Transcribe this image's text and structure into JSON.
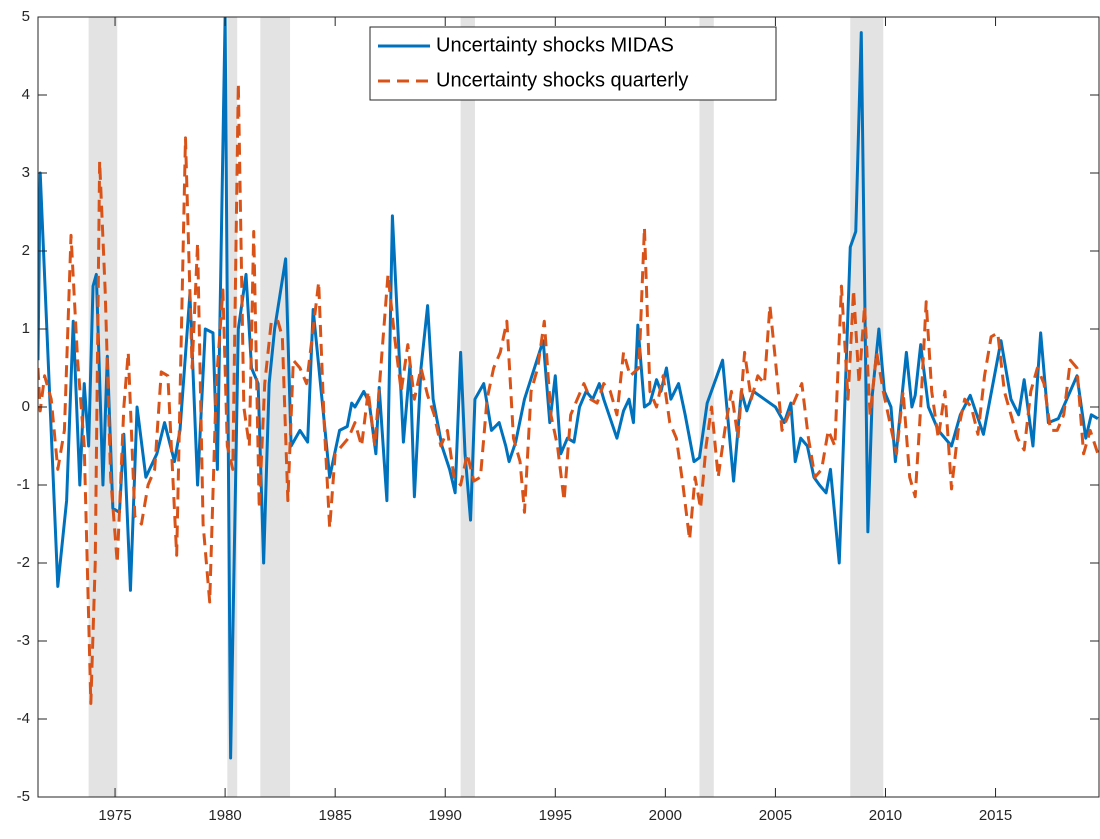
{
  "chart_data": {
    "type": "line",
    "xlim": [
      1971.5,
      2019.7
    ],
    "xticks": [
      1975,
      1980,
      1985,
      1990,
      1995,
      2000,
      2005,
      2010,
      2015
    ],
    "ylim": [
      -5,
      5
    ],
    "yticks": [
      -5,
      -4,
      -3,
      -2,
      -1,
      0,
      1,
      2,
      3,
      4,
      5
    ],
    "legend": "north",
    "recessions": [
      [
        1973.8,
        1975.1
      ],
      [
        1980.1,
        1980.55
      ],
      [
        1981.6,
        1982.95
      ],
      [
        1990.7,
        1991.35
      ],
      [
        2001.55,
        2002.2
      ],
      [
        2008.4,
        2009.9
      ]
    ],
    "recession_color": "#e3e3e3",
    "series": [
      {
        "name": "Uncertainty shocks MIDAS",
        "color": "#0072BD",
        "dash": "solid",
        "x": [
          1971.5,
          1971.6,
          1972.4,
          1972.8,
          1973.1,
          1973.4,
          1973.6,
          1973.8,
          1974.0,
          1974.15,
          1974.45,
          1974.65,
          1974.9,
          1975.2,
          1975.4,
          1975.7,
          1976.0,
          1976.4,
          1976.9,
          1977.25,
          1977.7,
          1977.95,
          1978.4,
          1978.75,
          1979.1,
          1979.45,
          1979.65,
          1980.0,
          1980.25,
          1980.6,
          1980.95,
          1981.2,
          1981.5,
          1981.75,
          1982.0,
          1982.25,
          1982.75,
          1983.0,
          1983.4,
          1983.75,
          1984.0,
          1984.75,
          1985.2,
          1985.55,
          1985.75,
          1985.9,
          1986.3,
          1986.55,
          1986.85,
          1987.0,
          1987.35,
          1987.6,
          1988.1,
          1988.4,
          1988.6,
          1988.9,
          1989.2,
          1989.45,
          1989.85,
          1990.2,
          1990.45,
          1990.7,
          1990.9,
          1991.15,
          1991.35,
          1991.75,
          1992.1,
          1992.45,
          1992.75,
          1992.9,
          1993.2,
          1993.6,
          1994.45,
          1994.75,
          1995.0,
          1995.25,
          1995.55,
          1995.85,
          1996.1,
          1996.4,
          1996.7,
          1997.0,
          1997.2,
          1997.8,
          1998.1,
          1998.35,
          1998.55,
          1998.75,
          1999.05,
          1999.3,
          1999.6,
          1999.8,
          2000.05,
          2000.25,
          2000.6,
          2000.9,
          2001.1,
          2001.3,
          2001.55,
          2001.9,
          2002.6,
          2003.1,
          2003.45,
          2003.7,
          2004.0,
          2004.5,
          2005.0,
          2005.4,
          2005.7,
          2005.9,
          2006.15,
          2006.45,
          2006.75,
          2007.0,
          2007.3,
          2007.5,
          2007.9,
          2008.4,
          2008.65,
          2008.9,
          2009.2,
          2009.4,
          2009.7,
          2009.95,
          2010.25,
          2010.45,
          2010.95,
          2011.2,
          2011.35,
          2011.6,
          2011.95,
          2012.4,
          2013.0,
          2013.4,
          2013.85,
          2014.45,
          2015.25,
          2015.7,
          2016.05,
          2016.3,
          2016.7,
          2017.05,
          2017.4,
          2017.85,
          2018.7,
          2019.1,
          2019.35,
          2019.65
        ],
        "values": [
          0.6,
          3.0,
          -2.3,
          -1.2,
          1.1,
          -1.0,
          0.3,
          -0.5,
          1.55,
          1.7,
          -1.0,
          0.65,
          -1.3,
          -1.35,
          -0.35,
          -2.35,
          0.0,
          -0.9,
          -0.6,
          -0.2,
          -0.7,
          -0.3,
          1.45,
          -1.0,
          1.0,
          0.95,
          -0.8,
          5.0,
          -4.5,
          1.0,
          1.7,
          0.5,
          0.3,
          -2.0,
          0.3,
          1.0,
          1.9,
          -0.5,
          -0.3,
          -0.45,
          1.25,
          -0.9,
          -0.3,
          -0.25,
          0.05,
          0.0,
          0.2,
          0.05,
          -0.6,
          0.25,
          -1.2,
          2.45,
          -0.45,
          0.55,
          -1.15,
          0.5,
          1.3,
          0.1,
          -0.5,
          -0.8,
          -1.1,
          0.7,
          -0.6,
          -1.45,
          0.1,
          0.3,
          -0.3,
          -0.2,
          -0.5,
          -0.7,
          -0.45,
          0.1,
          0.85,
          -0.2,
          0.4,
          -0.6,
          -0.4,
          -0.45,
          0.0,
          0.2,
          0.1,
          0.3,
          0.1,
          -0.4,
          -0.05,
          0.1,
          -0.2,
          1.05,
          0.0,
          0.05,
          0.35,
          0.2,
          0.5,
          0.1,
          0.3,
          -0.1,
          -0.4,
          -0.7,
          -0.65,
          0.05,
          0.6,
          -0.95,
          0.2,
          -0.05,
          0.2,
          0.1,
          0.0,
          -0.2,
          0.05,
          -0.7,
          -0.4,
          -0.5,
          -0.9,
          -1.0,
          -1.1,
          -0.8,
          -2.0,
          2.05,
          2.25,
          4.8,
          -1.6,
          0.15,
          1.0,
          0.2,
          0.0,
          -0.7,
          0.7,
          0.0,
          0.15,
          0.8,
          0.0,
          -0.3,
          -0.5,
          -0.1,
          0.15,
          -0.35,
          0.85,
          0.1,
          -0.1,
          0.35,
          -0.5,
          0.95,
          -0.2,
          -0.15,
          0.4,
          -0.4,
          -0.1,
          -0.15
        ]
      },
      {
        "name": "Uncertainty shocks quarterly",
        "color": "#D95319",
        "dash": "dashed",
        "x": [
          1971.5,
          1971.6,
          1971.8,
          1972.1,
          1972.4,
          1972.7,
          1973.0,
          1973.3,
          1973.6,
          1973.9,
          1974.1,
          1974.3,
          1974.55,
          1974.8,
          1975.1,
          1975.4,
          1975.6,
          1975.9,
          1976.2,
          1976.5,
          1976.8,
          1977.1,
          1977.4,
          1977.8,
          1978.2,
          1978.5,
          1978.75,
          1979.0,
          1979.3,
          1979.6,
          1979.9,
          1980.1,
          1980.35,
          1980.6,
          1980.85,
          1981.1,
          1981.3,
          1981.55,
          1981.8,
          1982.1,
          1982.4,
          1982.6,
          1982.85,
          1983.1,
          1983.4,
          1983.7,
          1984.0,
          1984.25,
          1984.5,
          1984.75,
          1985.0,
          1985.3,
          1985.6,
          1985.9,
          1986.2,
          1986.5,
          1986.8,
          1987.1,
          1987.4,
          1987.7,
          1988.0,
          1988.3,
          1988.6,
          1988.9,
          1989.2,
          1989.5,
          1989.8,
          1990.1,
          1990.4,
          1990.7,
          1991.0,
          1991.3,
          1991.6,
          1991.9,
          1992.2,
          1992.5,
          1992.8,
          1993.1,
          1993.4,
          1993.6,
          1993.9,
          1994.2,
          1994.5,
          1994.8,
          1995.1,
          1995.4,
          1995.7,
          1996.0,
          1996.3,
          1996.6,
          1996.9,
          1997.2,
          1997.5,
          1997.8,
          1998.1,
          1998.4,
          1998.8,
          1999.05,
          1999.3,
          1999.6,
          1999.9,
          2000.2,
          2000.5,
          2000.8,
          2001.1,
          2001.35,
          2001.6,
          2001.85,
          2002.1,
          2002.4,
          2002.7,
          2003.0,
          2003.3,
          2003.6,
          2003.9,
          2004.2,
          2004.5,
          2004.75,
          2005.0,
          2005.3,
          2005.6,
          2005.9,
          2006.2,
          2006.5,
          2006.8,
          2007.1,
          2007.4,
          2007.7,
          2008.0,
          2008.3,
          2008.55,
          2008.8,
          2009.05,
          2009.3,
          2009.6,
          2009.9,
          2010.2,
          2010.5,
          2010.8,
          2011.1,
          2011.35,
          2011.6,
          2011.85,
          2012.1,
          2012.4,
          2012.7,
          2013.0,
          2013.3,
          2013.6,
          2013.9,
          2014.2,
          2014.5,
          2014.8,
          2015.1,
          2015.4,
          2015.7,
          2016.0,
          2016.3,
          2016.6,
          2016.9,
          2017.2,
          2017.5,
          2017.8,
          2018.1,
          2018.4,
          2018.7,
          2019.0,
          2019.3,
          2019.65
        ],
        "values": [
          0.5,
          -0.05,
          0.4,
          0.1,
          -0.8,
          -0.3,
          2.2,
          0.6,
          -0.5,
          -3.8,
          -2.0,
          3.15,
          1.5,
          -0.9,
          -2.0,
          0.0,
          0.7,
          -1.4,
          -1.5,
          -1.0,
          -0.8,
          0.45,
          0.4,
          -1.9,
          3.45,
          0.5,
          2.1,
          -1.5,
          -2.5,
          0.3,
          1.5,
          -0.5,
          -0.8,
          4.15,
          0.0,
          -0.5,
          2.25,
          -1.3,
          0.3,
          1.1,
          1.1,
          0.9,
          -1.2,
          0.6,
          0.5,
          0.3,
          1.0,
          1.6,
          -0.2,
          -1.55,
          -0.6,
          -0.5,
          -0.4,
          -0.2,
          -0.5,
          0.2,
          -0.5,
          0.6,
          1.7,
          0.9,
          0.2,
          0.8,
          0.1,
          0.5,
          0.15,
          -0.1,
          -0.5,
          -0.3,
          -0.9,
          -1.0,
          -0.6,
          -0.95,
          -0.9,
          0.1,
          0.5,
          0.7,
          1.1,
          -0.4,
          -0.7,
          -1.35,
          0.2,
          0.5,
          1.1,
          -0.1,
          -0.5,
          -1.2,
          -0.1,
          0.1,
          0.3,
          0.1,
          0.05,
          0.3,
          0.2,
          -0.1,
          0.7,
          0.4,
          0.5,
          2.3,
          0.2,
          0.0,
          0.4,
          -0.2,
          -0.4,
          -1.0,
          -1.7,
          -0.9,
          -1.3,
          -0.5,
          0.0,
          -0.9,
          -0.3,
          0.2,
          -0.4,
          0.7,
          0.1,
          0.4,
          0.3,
          1.3,
          0.6,
          -0.3,
          -0.1,
          0.1,
          0.3,
          -0.4,
          -0.9,
          -0.8,
          -0.3,
          -0.5,
          1.55,
          0.1,
          1.5,
          0.3,
          1.3,
          -0.1,
          0.7,
          0.2,
          -0.2,
          -0.6,
          0.2,
          -0.9,
          -1.15,
          0.0,
          1.35,
          0.2,
          -0.4,
          0.2,
          -1.05,
          -0.3,
          0.1,
          0.0,
          -0.35,
          0.4,
          0.9,
          0.95,
          0.2,
          -0.1,
          -0.4,
          -0.55,
          0.2,
          0.5,
          0.3,
          -0.3,
          -0.3,
          -0.1,
          0.6,
          0.5,
          -0.6,
          -0.3,
          -0.6
        ]
      }
    ]
  }
}
